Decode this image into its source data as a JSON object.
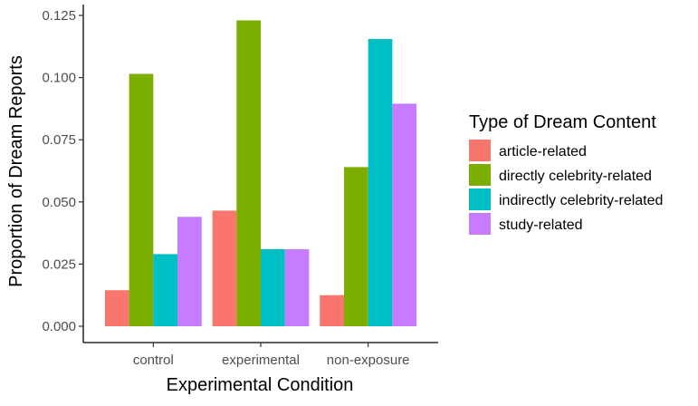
{
  "chart_data": {
    "type": "bar",
    "categories": [
      "control",
      "experimental",
      "non-exposure"
    ],
    "series": [
      {
        "name": "article-related",
        "color": "#F8766D",
        "values": [
          0.0145,
          0.0465,
          0.0125
        ]
      },
      {
        "name": "directly celebrity-related",
        "color": "#7CAE00",
        "values": [
          0.1015,
          0.123,
          0.064
        ]
      },
      {
        "name": "indirectly celebrity-related",
        "color": "#00BFC4",
        "values": [
          0.029,
          0.031,
          0.1155
        ]
      },
      {
        "name": "study-related",
        "color": "#C77CFF",
        "values": [
          0.044,
          0.031,
          0.0895
        ]
      }
    ],
    "xlabel": "Experimental Condition",
    "ylabel": "Proportion of Dream Reports",
    "ylim": [
      0,
      0.125
    ],
    "yticks": [
      "0.000",
      "0.025",
      "0.050",
      "0.075",
      "0.100",
      "0.125"
    ],
    "legend": {
      "title": "Type of Dream Content",
      "position": "right"
    },
    "grid": false
  }
}
